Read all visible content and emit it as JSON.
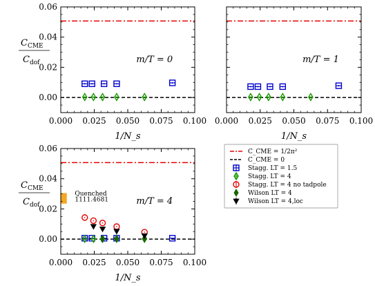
{
  "ylabel": {
    "num": "C",
    "num_sub": "CME",
    "den": "C",
    "den_sub": "dof"
  },
  "legend": [
    {
      "label": "C_CME = 1/2π²",
      "color": "#e60000",
      "style": "dashdot"
    },
    {
      "label": "C_CME = 0",
      "color": "#000000",
      "style": "dashed"
    },
    {
      "label": "Stagg. LT = 1.5",
      "color": "#0000cc",
      "marker": "square"
    },
    {
      "label": "Stagg. LT = 4",
      "color": "#1a9900",
      "marker": "diamond-open"
    },
    {
      "label": "Stagg. LT = 4 no tadpole",
      "color": "#e60000",
      "marker": "circle"
    },
    {
      "label": "Wilson LT = 4",
      "color": "#1a6600",
      "marker": "diamond-filled"
    },
    {
      "label": "Wilson LT = 4,loc",
      "color": "#000000",
      "marker": "triangle-down"
    }
  ],
  "chart_data": [
    {
      "type": "scatter",
      "annotation": "m/T = 0",
      "xlabel": "1/N_s",
      "xlim": [
        0.0,
        0.1
      ],
      "ylim": [
        -0.01,
        0.06
      ],
      "xticks": [
        "0.000",
        "0.025",
        "0.050",
        "0.075",
        "0.100"
      ],
      "yticks": [
        "0.00",
        "0.02",
        "0.04",
        "0.06"
      ],
      "show_ylabel": true,
      "show_yticks": true,
      "hlines": [
        0.0507,
        0.0
      ],
      "series": [
        {
          "name": "Stagg. LT = 1.5",
          "x": [
            0.0179,
            0.0233,
            0.0323,
            0.0417,
            0.0833
          ],
          "y": [
            0.0091,
            0.0091,
            0.0091,
            0.0091,
            0.0097
          ],
          "yerr": 0.0005
        },
        {
          "name": "Stagg. LT = 4",
          "x": [
            0.0179,
            0.0244,
            0.0312,
            0.0417,
            0.0625
          ],
          "y": [
            0.0003,
            0.0003,
            0.0003,
            0.0003,
            0.0003
          ],
          "yerr": 0.0004
        }
      ]
    },
    {
      "type": "scatter",
      "annotation": "m/T = 1",
      "xlabel": "1/N_s",
      "xlim": [
        0.0,
        0.1
      ],
      "ylim": [
        -0.01,
        0.06
      ],
      "xticks": [
        "0.000",
        "0.025",
        "0.050",
        "0.075",
        "0.100"
      ],
      "yticks": [],
      "show_ylabel": false,
      "show_yticks": false,
      "hlines": [
        0.0507,
        0.0
      ],
      "series": [
        {
          "name": "Stagg. LT = 1.5",
          "x": [
            0.0179,
            0.0233,
            0.0323,
            0.0417,
            0.0833
          ],
          "y": [
            0.0072,
            0.0072,
            0.0072,
            0.0072,
            0.0078
          ],
          "yerr": 0.0005
        },
        {
          "name": "Stagg. LT = 4",
          "x": [
            0.0179,
            0.0244,
            0.0312,
            0.0417,
            0.0625
          ],
          "y": [
            0.0003,
            0.0003,
            0.0003,
            0.0003,
            0.0003
          ],
          "yerr": 0.0004
        }
      ]
    },
    {
      "type": "scatter",
      "annotation": "m/T = 4",
      "quenched": {
        "label1": "Quenched",
        "label2": "1111.4681",
        "x0": 0.0,
        "x1": 0.0045,
        "y0": 0.0235,
        "y1": 0.0305,
        "color": "#f5a623"
      },
      "xlabel": "1/N_s",
      "xlim": [
        0.0,
        0.1
      ],
      "ylim": [
        -0.01,
        0.06
      ],
      "xticks": [
        "0.000",
        "0.025",
        "0.050",
        "0.075",
        "0.100"
      ],
      "yticks": [
        "0.00",
        "0.02",
        "0.04",
        "0.06"
      ],
      "show_ylabel": true,
      "show_yticks": true,
      "hlines": [
        0.0507,
        0.0
      ],
      "series": [
        {
          "name": "Stagg. LT = 1.5",
          "x": [
            0.0179,
            0.0233,
            0.0323,
            0.0417,
            0.0833
          ],
          "y": [
            0.0006,
            0.0006,
            0.0006,
            0.0006,
            0.0006
          ],
          "yerr": 0.0004
        },
        {
          "name": "Stagg. LT = 4",
          "x": [
            0.0179,
            0.0244,
            0.0312,
            0.0417,
            0.0625
          ],
          "y": [
            0.0002,
            0.0002,
            0.0002,
            0.0002,
            0.0002
          ],
          "yerr": 0.0004
        },
        {
          "name": "Stagg. LT = 4 no tadpole",
          "x": [
            0.0179,
            0.0244,
            0.0312,
            0.0417,
            0.0625
          ],
          "y": [
            0.0143,
            0.0122,
            0.0107,
            0.0083,
            0.0046
          ],
          "yerr": 0.0004
        },
        {
          "name": "Wilson LT = 4",
          "x": [
            0.0312,
            0.0417,
            0.0625
          ],
          "y": [
            0.0001,
            0.0003,
            0.0004
          ],
          "yerr": 0.0006
        },
        {
          "name": "Wilson LT = 4,loc",
          "x": [
            0.0244,
            0.0312,
            0.0417,
            0.0625
          ],
          "y": [
            0.0084,
            0.0067,
            0.0052,
            0.0022
          ],
          "yerr": 0.0006
        }
      ]
    }
  ]
}
